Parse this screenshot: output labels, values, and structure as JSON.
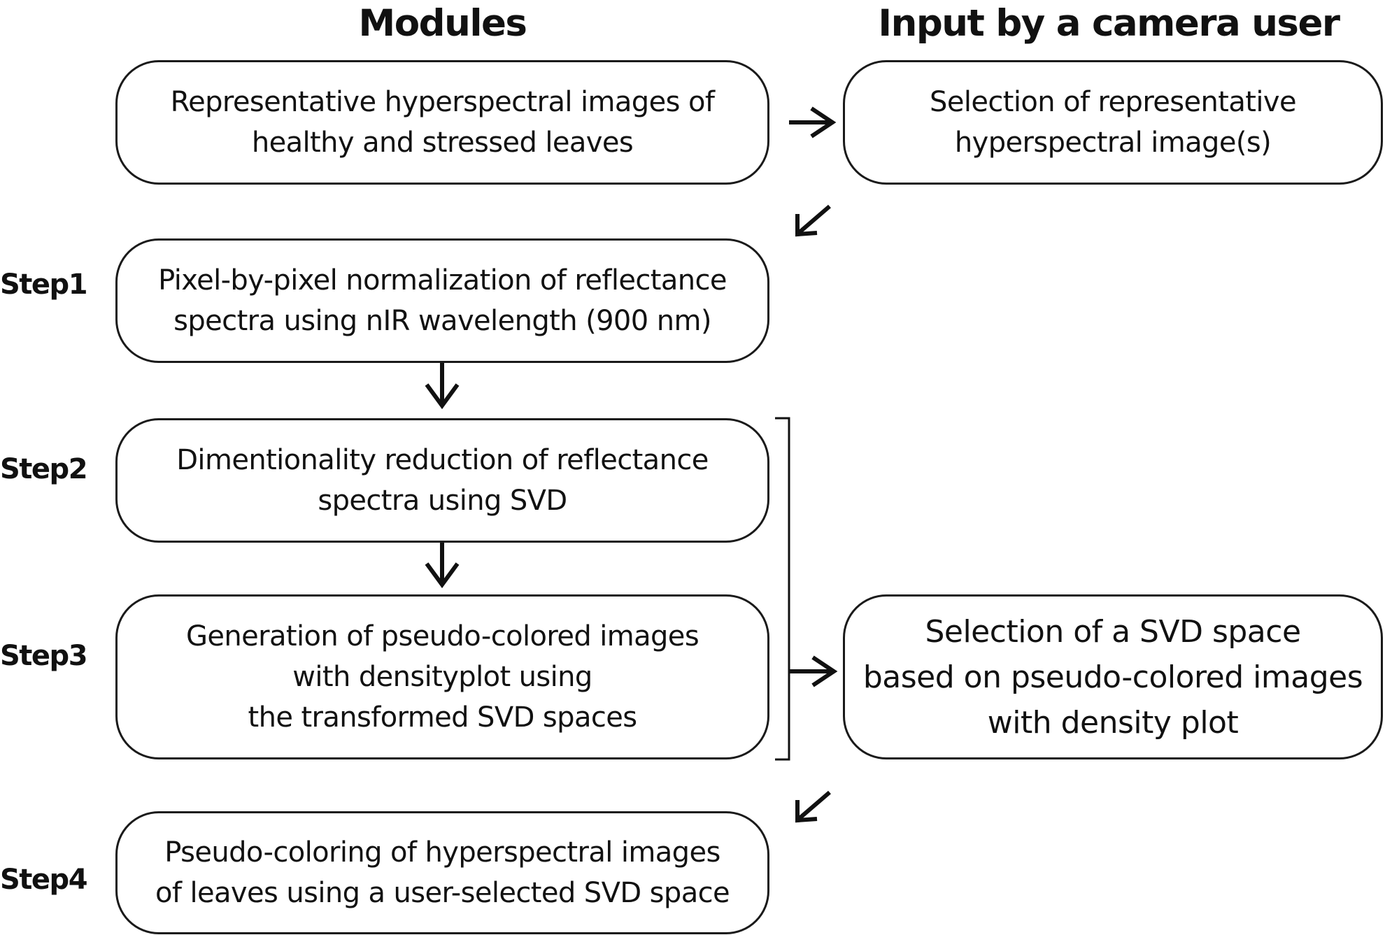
{
  "headers": {
    "modules": "Modules",
    "user_input": "Input by a camera user"
  },
  "modules": {
    "representative": "Representative hyperspectral images of\nhealthy and stressed leaves",
    "step1": "Pixel-by-pixel normalization of reflectance\nspectra using nIR wavelength (900 nm)",
    "step2": "Dimentionality reduction of reflectance\nspectra using SVD",
    "step3": "Generation of pseudo-colored images\nwith densityplot using\nthe transformed SVD spaces",
    "step4": "Pseudo-coloring of hyperspectral images\nof leaves using a user-selected SVD space"
  },
  "user_inputs": {
    "select_images": "Selection of representative\nhyperspectral image(s)",
    "select_svd_space": "Selection of a SVD space\nbased on pseudo-colored images\nwith density plot"
  },
  "steps": {
    "step1": "Step1",
    "step2": "Step2",
    "step3": "Step3",
    "step4": "Step4"
  }
}
